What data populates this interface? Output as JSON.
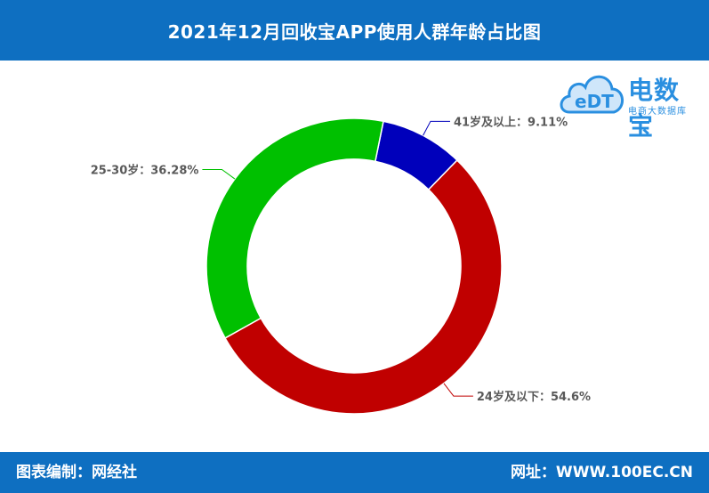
{
  "header": {
    "title": "2021年12月回收宝APP使用人群年龄占比图"
  },
  "footer": {
    "left": "图表编制：网经社",
    "right": "网址：WWW.100EC.CN"
  },
  "logo": {
    "icon_name": "cloud-logo-icon",
    "brand": "电数宝",
    "subtitle": "电商大数据库",
    "color": "#2a8fe0"
  },
  "colors": {
    "header_bg": "#0e6fc1"
  },
  "chart_data": {
    "type": "pie",
    "title": "2021年12月回收宝APP使用人群年龄占比图",
    "donut": true,
    "labels": [
      "41岁及以上：9.11%",
      "24岁及以下：54.6%",
      "25-30岁：36.28%"
    ],
    "values": [
      9.11,
      54.6,
      36.28
    ],
    "colors": [
      "#0000bb",
      "#c00000",
      "#00c000"
    ]
  }
}
